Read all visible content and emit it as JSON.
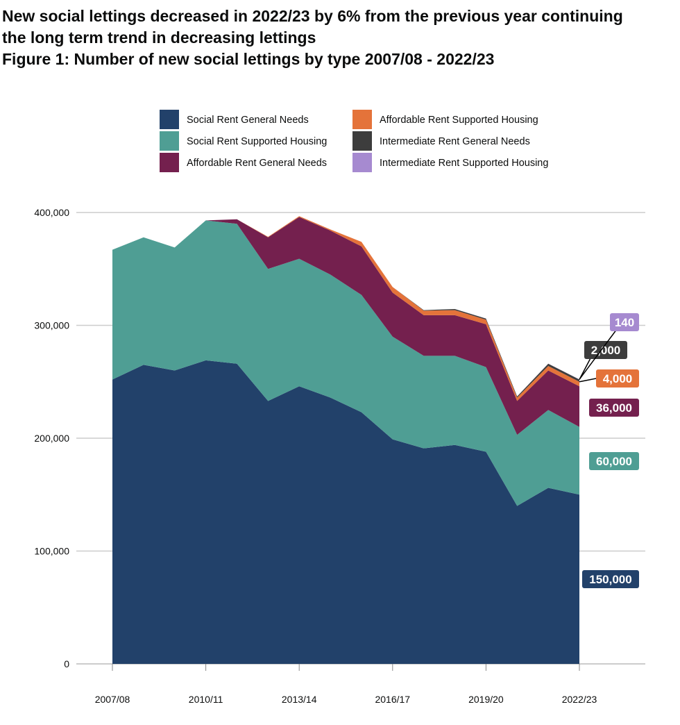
{
  "headline": "New social lettings decreased in 2022/23 by 6% from the previous year continuing the long term trend in decreasing lettings",
  "headline_line1": "New social lettings decreased in 2022/23 by 6% from the previous year continuing",
  "headline_line2": "the long term trend in decreasing lettings",
  "figure_title": "Figure 1: Number of new social lettings by type 2007/08 - 2022/23",
  "chart_data": {
    "type": "area",
    "stacked": true,
    "title": "Figure 1: Number of new social lettings by type 2007/08 - 2022/23",
    "xlabel": "",
    "ylabel": "",
    "ylim": [
      0,
      400000
    ],
    "yticks": [
      0,
      100000,
      200000,
      300000,
      400000
    ],
    "ytick_labels": [
      "0",
      "100,000",
      "200,000",
      "300,000",
      "400,000"
    ],
    "xtick_labels": [
      "2007/08",
      "2010/11",
      "2013/14",
      "2016/17",
      "2019/20",
      "2022/23"
    ],
    "grid": "horizontal",
    "legend_placement": "top",
    "categories": [
      "2007/08",
      "2008/09",
      "2009/10",
      "2010/11",
      "2011/12",
      "2012/13",
      "2013/14",
      "2014/15",
      "2015/16",
      "2016/17",
      "2017/18",
      "2018/19",
      "2019/20",
      "2020/21",
      "2021/22",
      "2022/23"
    ],
    "series": [
      {
        "name": "Social Rent General Needs",
        "color": "#22416a",
        "end_label": "150,000",
        "values": [
          252000,
          265000,
          260000,
          269000,
          266000,
          233000,
          246000,
          236000,
          223000,
          199000,
          191000,
          194000,
          188000,
          140000,
          156000,
          150000
        ]
      },
      {
        "name": "Social Rent Supported Housing",
        "color": "#4f9e94",
        "end_label": "60,000",
        "values": [
          115000,
          113000,
          109000,
          124000,
          124000,
          117000,
          113000,
          109000,
          104000,
          91000,
          82000,
          79000,
          75000,
          63000,
          69000,
          60000
        ]
      },
      {
        "name": "Affordable Rent General Needs",
        "color": "#74204e",
        "end_label": "36,000",
        "values": [
          0,
          0,
          0,
          0,
          4000,
          28000,
          37000,
          39000,
          43000,
          39000,
          36000,
          36000,
          38000,
          30000,
          35000,
          36000
        ]
      },
      {
        "name": "Affordable Rent Supported Housing",
        "color": "#e4733a",
        "end_label": "4,000",
        "values": [
          0,
          0,
          0,
          0,
          0,
          500,
          800,
          1000,
          4000,
          5000,
          4000,
          4500,
          4000,
          3000,
          4000,
          4000
        ]
      },
      {
        "name": "Intermediate Rent General Needs",
        "color": "#3d3d3d",
        "end_label": "2,000",
        "values": [
          0,
          0,
          0,
          0,
          0,
          0,
          0,
          0,
          0,
          0,
          500,
          1000,
          1000,
          1000,
          2000,
          2000
        ]
      },
      {
        "name": "Intermediate Rent Supported Housing",
        "color": "#a68ad0",
        "end_label": "140",
        "values": [
          0,
          0,
          0,
          0,
          0,
          0,
          0,
          0,
          0,
          0,
          0,
          0,
          100,
          100,
          100,
          140
        ]
      }
    ]
  }
}
